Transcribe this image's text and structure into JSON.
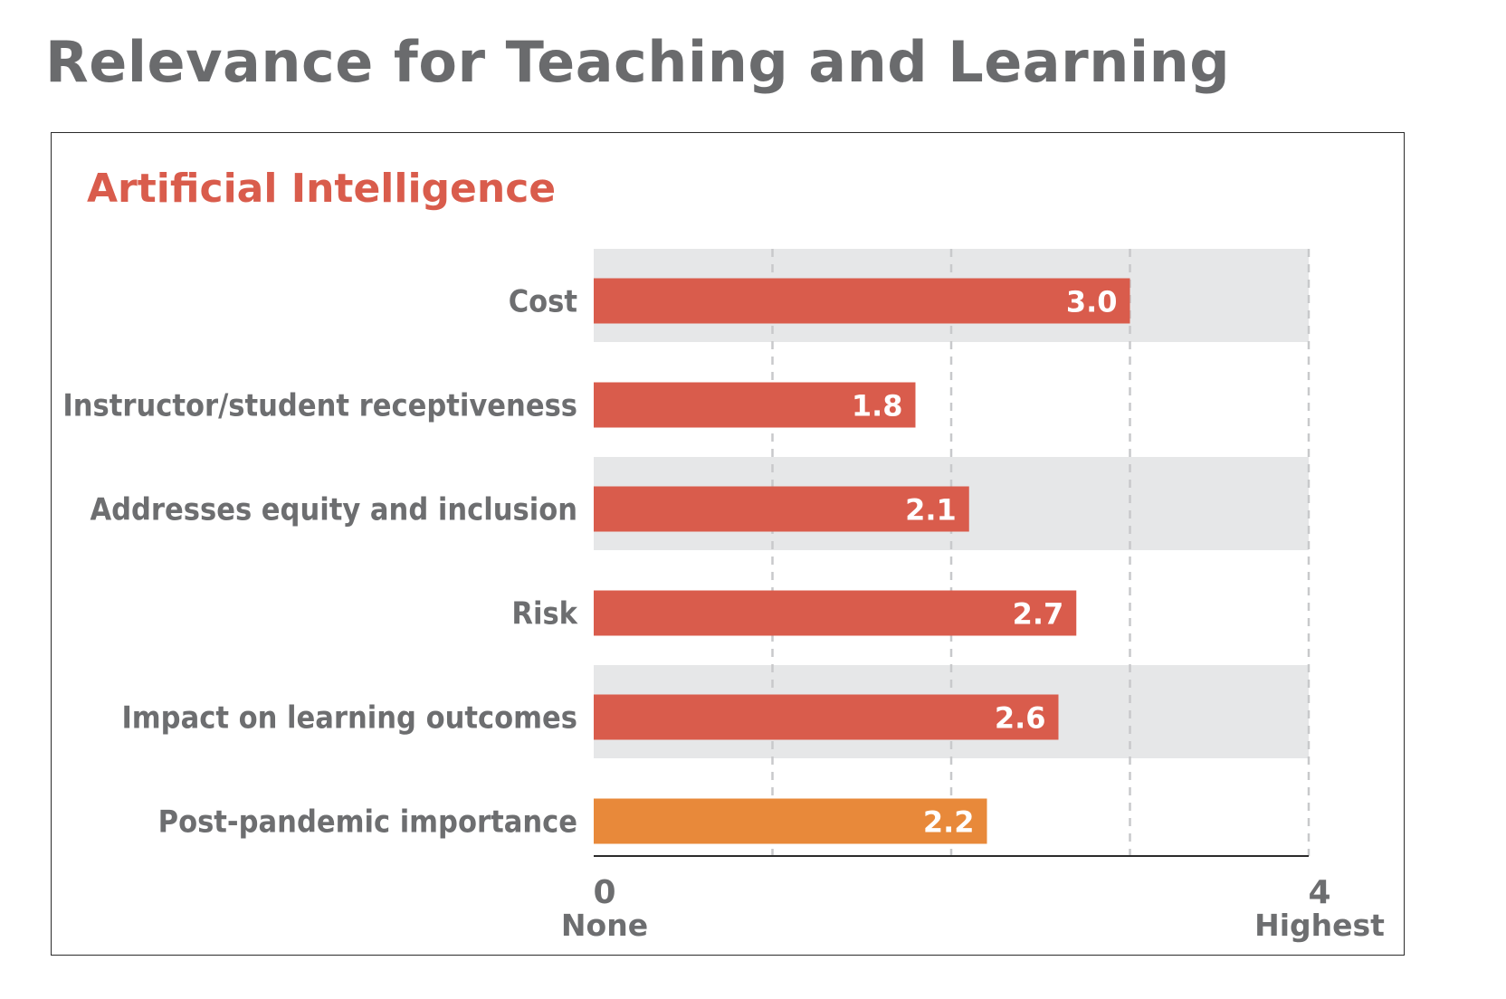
{
  "header": {
    "title": "Relevance for Teaching and Learning"
  },
  "colors": {
    "title": "#6a6b6d",
    "subtitle": "#d95c4c",
    "bar": "#d95c4c",
    "bar_highlight": "#e8893a",
    "band": "#e6e7e8",
    "grid": "#c8c9cb",
    "axis": "#2b2b2b",
    "text": "#6d6e70",
    "value_text": "#ffffff"
  },
  "chart_data": {
    "type": "bar",
    "orientation": "horizontal",
    "title": "Artificial Intelligence",
    "categories": [
      "Cost",
      "Instructor/student receptiveness",
      "Addresses equity and inclusion",
      "Risk",
      "Impact on learning outcomes",
      "Post-pandemic importance"
    ],
    "values": [
      3.0,
      1.8,
      2.1,
      2.7,
      2.6,
      2.2
    ],
    "value_labels": [
      "3.0",
      "1.8",
      "2.1",
      "2.7",
      "2.6",
      "2.2"
    ],
    "highlight_index": 5,
    "xlim": [
      0,
      4
    ],
    "gridlines": [
      1,
      2,
      3,
      4
    ],
    "ticks": [
      {
        "value": 0,
        "label": "0",
        "sublabel": "None"
      },
      {
        "value": 4,
        "label": "4",
        "sublabel": "Highest"
      }
    ],
    "xlabel": "",
    "ylabel": "",
    "alternating_bands": true
  }
}
